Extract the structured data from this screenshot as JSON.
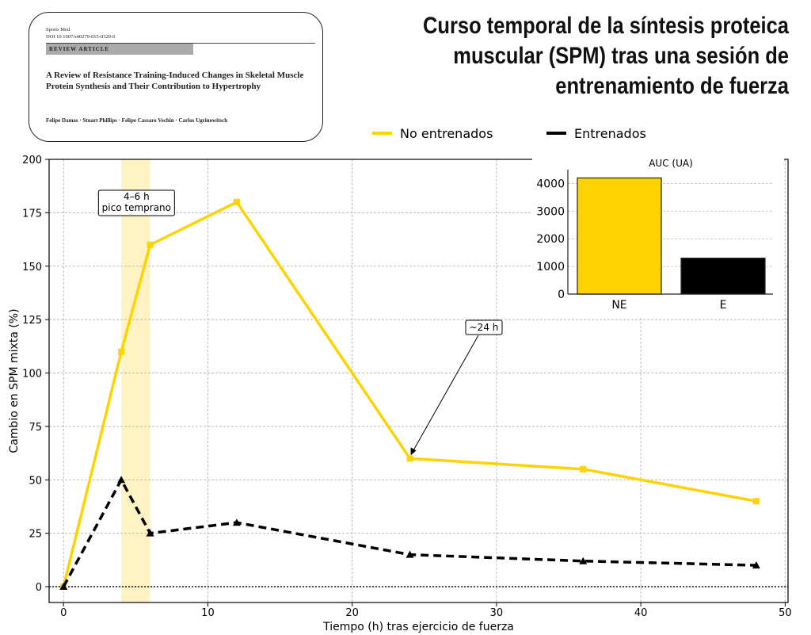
{
  "title": "Curso temporal de la síntesis proteica muscular (SPM) tras una sesión de entrenamiento de fuerza",
  "paper": {
    "journal": "Sports Med",
    "doi": "DOI 10.1007/s40279-015-0320-0",
    "section": "REVIEW ARTICLE",
    "title": "A Review of Resistance Training-Induced Changes in Skeletal Muscle Protein Synthesis and Their Contribution to Hypertrophy",
    "authors": "Felipe Damas · Stuart Phillips · Felipe Cassaro Vechin · Carlos Ugrinowitsch"
  },
  "chart_data": [
    {
      "type": "line",
      "xlabel": "Tiempo (h) tras ejercicio de fuerza",
      "ylabel": "Cambio en SPM mixta (%)",
      "x": [
        0,
        4,
        6,
        12,
        24,
        36,
        48
      ],
      "xlim": [
        -1,
        50.2
      ],
      "ylim": [
        -7.4,
        200
      ],
      "xticks": [
        0,
        10,
        20,
        30,
        40,
        50
      ],
      "yticks": [
        0,
        25,
        50,
        75,
        100,
        125,
        150,
        175,
        200
      ],
      "grid": true,
      "legend": "top-right",
      "series": [
        {
          "name": "No entrenados",
          "values": [
            0,
            110,
            160,
            180,
            60,
            55,
            40
          ],
          "color": "#FFD300",
          "style": "solid",
          "marker": "square"
        },
        {
          "name": "Entrenados",
          "values": [
            0,
            50,
            25,
            30,
            15,
            12,
            10
          ],
          "color": "#000000",
          "style": "dashed",
          "marker": "triangle"
        }
      ],
      "shaded_span": {
        "x": [
          4,
          6
        ],
        "color": "#FFF3C4"
      },
      "annotations": [
        {
          "text": "4–6 h\npico temprano",
          "x": 5,
          "y": 180
        },
        {
          "text": "~24 h",
          "x": 24,
          "y": 60,
          "arrow": true
        }
      ]
    },
    {
      "type": "bar",
      "title": "AUC (UA)",
      "categories": [
        "NE",
        "E"
      ],
      "values": [
        4200,
        1300
      ],
      "colors": [
        "#FFD300",
        "#000000"
      ],
      "ylim": [
        0,
        4500
      ],
      "yticks": [
        0,
        1000,
        2000,
        3000,
        4000
      ],
      "grid": true
    }
  ]
}
